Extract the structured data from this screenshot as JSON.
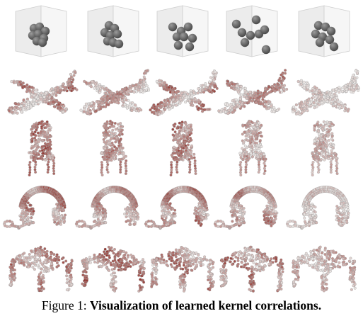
{
  "figure": {
    "rows": [
      "kernel-points",
      "airplane",
      "chair",
      "headphones",
      "table"
    ],
    "columns": 5,
    "colors": {
      "kernel_box": "#f2f2f2",
      "kernel_ball": "#4a4a4a",
      "point_light": "#e9e4e2",
      "point_dark": "#8e2a24",
      "point_outline": "#9a9a9a"
    }
  },
  "caption": {
    "prefix": "Figure 1:",
    "text": "Visualization of learned kernel correlations."
  }
}
